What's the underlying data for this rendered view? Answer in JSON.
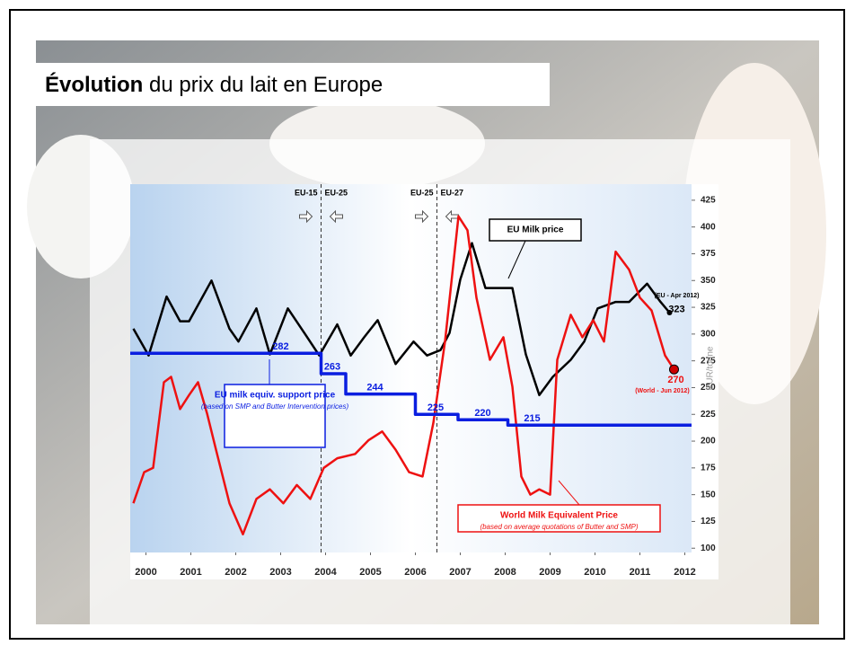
{
  "chart_data": {
    "type": "line",
    "title_bold": "Évolution",
    "title_rest": "du prix du lait en Europe",
    "y_label": "EUR/tonne",
    "xlim": [
      2000.15,
      2012.65
    ],
    "xticks": [
      {
        "value": 2000.5,
        "label": "2000"
      },
      {
        "value": 2001.5,
        "label": "2001"
      },
      {
        "value": 2002.5,
        "label": "2002"
      },
      {
        "value": 2003.5,
        "label": "2003"
      },
      {
        "value": 2004.5,
        "label": "2004"
      },
      {
        "value": 2005.5,
        "label": "2005"
      },
      {
        "value": 2006.5,
        "label": "2006"
      },
      {
        "value": 2007.5,
        "label": "2007"
      },
      {
        "value": 2008.5,
        "label": "2008"
      },
      {
        "value": 2009.5,
        "label": "2009"
      },
      {
        "value": 2010.5,
        "label": "2010"
      },
      {
        "value": 2011.5,
        "label": "2011"
      },
      {
        "value": 2012.5,
        "label": "2012"
      }
    ],
    "ylim": [
      96,
      440
    ],
    "yticks": [
      100,
      125,
      150,
      175,
      200,
      225,
      250,
      275,
      300,
      325,
      350,
      375,
      400,
      425
    ],
    "periods": [
      {
        "x": 2004.4,
        "left": "EU-15",
        "right": "EU-25"
      },
      {
        "x": 2006.98,
        "left": "EU-25",
        "right": "EU-27"
      }
    ],
    "series": [
      {
        "name": "EU Milk price",
        "color": "#000000",
        "x": [
          2000.22,
          2000.56,
          2000.96,
          2001.26,
          2001.46,
          2001.96,
          2002.36,
          2002.56,
          2002.96,
          2003.26,
          2003.66,
          2004.06,
          2004.36,
          2004.76,
          2005.06,
          2005.36,
          2005.66,
          2006.06,
          2006.46,
          2006.76,
          2007.06,
          2007.26,
          2007.5,
          2007.76,
          2008.06,
          2008.36,
          2008.66,
          2008.96,
          2009.26,
          2009.56,
          2009.96,
          2010.26,
          2010.56,
          2010.96,
          2011.26,
          2011.66,
          2011.96,
          2012.16
        ],
        "values": [
          305,
          280,
          335,
          312,
          312,
          350,
          305,
          293,
          324,
          281,
          324,
          299,
          280,
          309,
          280,
          297,
          313,
          272,
          293,
          280,
          285,
          301,
          351,
          385,
          343,
          343,
          343,
          281,
          243,
          260,
          276,
          293,
          324,
          330,
          330,
          347,
          330,
          320
        ]
      },
      {
        "name": "World Milk Equivalent Price",
        "color": "#ee1111",
        "x": [
          2000.22,
          2000.46,
          2000.66,
          2000.9,
          2001.06,
          2001.26,
          2001.46,
          2001.66,
          2001.86,
          2002.06,
          2002.36,
          2002.66,
          2002.96,
          2003.26,
          2003.56,
          2003.86,
          2004.16,
          2004.46,
          2004.76,
          2005.16,
          2005.46,
          2005.76,
          2006.06,
          2006.36,
          2006.66,
          2006.9,
          2007.16,
          2007.46,
          2007.66,
          2007.86,
          2008.16,
          2008.46,
          2008.66,
          2008.86,
          2009.06,
          2009.26,
          2009.5,
          2009.66,
          2009.96,
          2010.22,
          2010.46,
          2010.7,
          2010.96,
          2011.26,
          2011.5,
          2011.76,
          2012.06,
          2012.26
        ],
        "values": [
          142,
          171,
          175,
          255,
          260,
          230,
          243,
          255,
          226,
          192,
          142,
          113,
          146,
          155,
          142,
          159,
          146,
          175,
          184,
          188,
          201,
          209,
          192,
          171,
          167,
          217,
          293,
          410,
          397,
          334,
          276,
          297,
          251,
          167,
          150,
          155,
          150,
          276,
          318,
          297,
          313,
          293,
          377,
          360,
          334,
          322,
          280,
          267
        ]
      },
      {
        "name": "EU milk equiv. support price",
        "color": "#0a1ee0",
        "x": [
          2000.15,
          2004.4,
          2004.4,
          2004.95,
          2004.95,
          2006.5,
          2006.5,
          2007.45,
          2007.45,
          2008.56,
          2008.56,
          2012.65
        ],
        "values": [
          282,
          282,
          263,
          263,
          244,
          244,
          225,
          225,
          220,
          220,
          215,
          215
        ],
        "note": "(based on SMP and Butter Intervention prices)"
      }
    ],
    "world_note": "(based on average quotations of Butter and SMP)",
    "annotations": [
      {
        "text": "282",
        "x": 2003.5,
        "y": 288,
        "color": "#0a1ee0"
      },
      {
        "text": "263",
        "x": 2004.65,
        "y": 269,
        "color": "#0a1ee0"
      },
      {
        "text": "244",
        "x": 2005.6,
        "y": 250,
        "color": "#0a1ee0"
      },
      {
        "text": "225",
        "x": 2006.95,
        "y": 231,
        "color": "#0a1ee0"
      },
      {
        "text": "220",
        "x": 2008.0,
        "y": 226,
        "color": "#0a1ee0"
      },
      {
        "text": "215",
        "x": 2009.1,
        "y": 221,
        "color": "#0a1ee0"
      },
      {
        "text": "323",
        "x": 2012.32,
        "y": 323,
        "color": "#000000"
      },
      {
        "text": "(EU - Apr 2012)",
        "x": 2012.32,
        "y": 336,
        "color": "#000000"
      },
      {
        "text": "270",
        "x": 2012.3,
        "y": 257,
        "color": "#ee1111"
      },
      {
        "text": "(World - Jun 2012)",
        "x": 2012.0,
        "y": 247,
        "color": "#ee1111"
      }
    ]
  }
}
